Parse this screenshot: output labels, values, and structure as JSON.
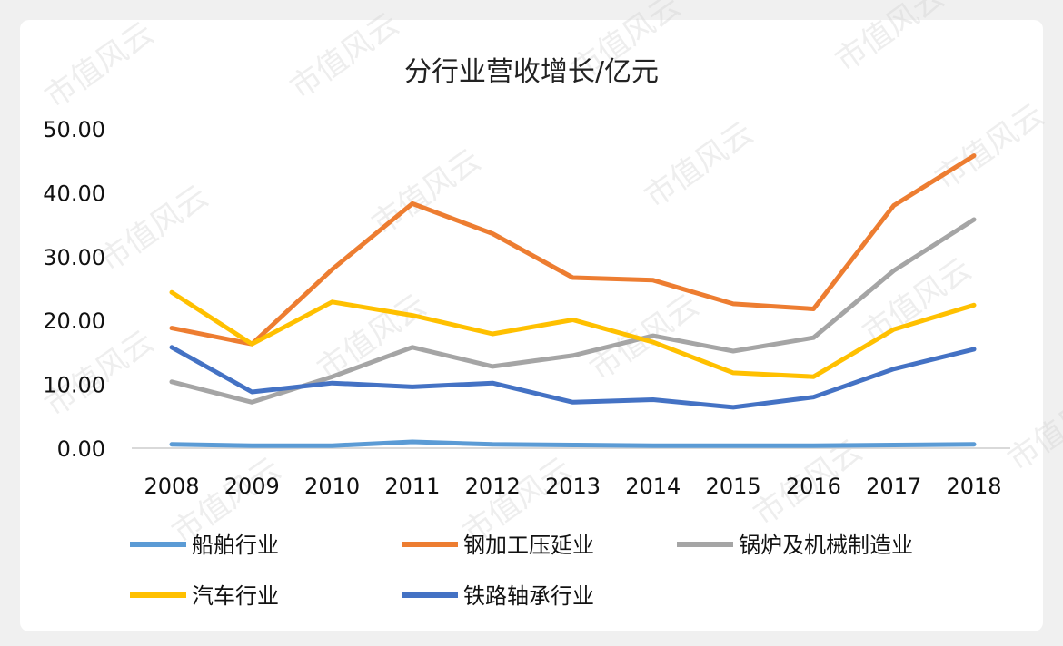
{
  "chart_data": {
    "type": "line",
    "title": "分行业营收增长/亿元",
    "categories": [
      "2008",
      "2009",
      "2010",
      "2011",
      "2012",
      "2013",
      "2014",
      "2015",
      "2016",
      "2017",
      "2018"
    ],
    "ylim": [
      0,
      50
    ],
    "yticks": [
      "0.00",
      "10.00",
      "20.00",
      "30.00",
      "40.00",
      "50.00"
    ],
    "grid": false,
    "legend_position": "bottom",
    "series": [
      {
        "name": "船舶行业",
        "color": "#5B9BD5",
        "values": [
          0.6,
          0.4,
          0.4,
          1.0,
          0.6,
          0.5,
          0.4,
          0.4,
          0.4,
          0.5,
          0.6
        ]
      },
      {
        "name": "钢加工压延业",
        "color": "#ED7D31",
        "values": [
          18.8,
          16.3,
          28.0,
          38.3,
          33.6,
          26.7,
          26.3,
          22.6,
          21.8,
          38.0,
          45.8
        ]
      },
      {
        "name": "锅炉及机械制造业",
        "color": "#A5A5A5",
        "values": [
          10.4,
          7.2,
          11.2,
          15.8,
          12.8,
          14.5,
          17.6,
          15.2,
          17.3,
          27.8,
          35.8
        ]
      },
      {
        "name": "汽车行业",
        "color": "#FFC000",
        "values": [
          24.4,
          16.3,
          22.9,
          20.8,
          17.9,
          20.1,
          16.6,
          11.8,
          11.2,
          18.6,
          22.4
        ]
      },
      {
        "name": "铁路轴承行业",
        "color": "#4472C4",
        "values": [
          15.8,
          8.8,
          10.2,
          9.6,
          10.2,
          7.2,
          7.6,
          6.4,
          8.0,
          12.4,
          15.5
        ]
      }
    ]
  },
  "watermark": "市值风云"
}
